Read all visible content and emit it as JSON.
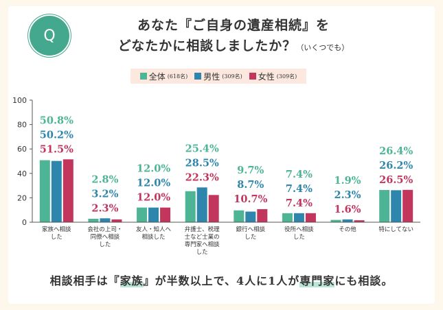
{
  "header": {
    "badge": "Q",
    "title_line1": "あなた『ご自身の遺産相続』を",
    "title_line2": "どなたかに相談しましたか？",
    "title_note": "（いくつでも）"
  },
  "colors": {
    "all": "#4db596",
    "male": "#2f86ad",
    "female": "#c2365e"
  },
  "chart_data": {
    "type": "bar",
    "ylim": [
      0,
      100
    ],
    "yticks": [
      "0",
      "20",
      "40",
      "60",
      "80",
      "100"
    ],
    "series": [
      {
        "name": "全体",
        "count": "(618名)",
        "values": [
          50.8,
          2.8,
          12.0,
          25.4,
          9.7,
          7.4,
          1.9,
          26.4
        ],
        "labels": [
          "50.8%",
          "2.8%",
          "12.0%",
          "25.4%",
          "9.7%",
          "7.4%",
          "1.9%",
          "26.4%"
        ]
      },
      {
        "name": "男性",
        "count": "(309名)",
        "values": [
          50.2,
          3.2,
          12.0,
          28.5,
          8.7,
          7.4,
          2.3,
          26.2
        ],
        "labels": [
          "50.2%",
          "3.2%",
          "12.0%",
          "28.5%",
          "8.7%",
          "7.4%",
          "2.3%",
          "26.2%"
        ]
      },
      {
        "name": "女性",
        "count": "(309名)",
        "values": [
          51.5,
          2.3,
          12.0,
          22.3,
          10.7,
          7.4,
          1.6,
          26.5
        ],
        "labels": [
          "51.5%",
          "2.3%",
          "12.0%",
          "22.3%",
          "10.7%",
          "7.4%",
          "1.6%",
          "26.5%"
        ]
      }
    ],
    "categories": [
      [
        "家族へ相談",
        "した"
      ],
      [
        "会社の上司・",
        "同僚へ相談",
        "した"
      ],
      [
        "友人・知人へ",
        "相談した"
      ],
      [
        "弁護士、税理",
        "士など士業の",
        "専門家へ相談",
        "した"
      ],
      [
        "銀行へ相談",
        "した"
      ],
      [
        "役所へ相談",
        "した"
      ],
      [
        "その他"
      ],
      [
        "特にしてない"
      ]
    ]
  },
  "summary": {
    "part1": "相談相手は『",
    "hl1": "家族",
    "part2": "』が半数以上で、4人に1人が",
    "hl2": "専門家",
    "part3": "にも相談。"
  }
}
